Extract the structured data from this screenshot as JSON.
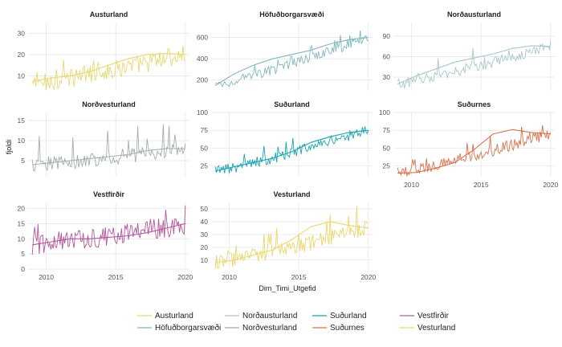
{
  "chart_data": {
    "type": "line",
    "xlabel": "Dim_Timi_Utgefid",
    "ylabel": "fjoldi",
    "x_ticks": [
      2010,
      2015,
      2020
    ],
    "x_range": [
      2008.7,
      2020.3
    ],
    "x_tick_panels": [
      "Vestfirðir",
      "Vesturland",
      "Suðurnes"
    ],
    "legend_position": "bottom",
    "grid": true,
    "panels": [
      {
        "name": "Austurland",
        "color": "#e8d870",
        "ylim": [
          3,
          35
        ],
        "yticks": [
          10,
          20,
          30
        ],
        "start": 6,
        "end": 20,
        "noise": 4.5,
        "spike": 8,
        "x_axis": false,
        "smooth": [
          7.5,
          9,
          10,
          12,
          15,
          18,
          20,
          20.5,
          20
        ]
      },
      {
        "name": "Höfuðborgarsvæði",
        "color": "#7fb7bf",
        "ylim": [
          100,
          740
        ],
        "yticks": [
          200,
          400,
          600
        ],
        "start": 150,
        "end": 600,
        "noise": 45,
        "spike": 60,
        "x_axis": false,
        "smooth": [
          150,
          260,
          340,
          400,
          440,
          480,
          540,
          580,
          600
        ]
      },
      {
        "name": "Norðausturland",
        "color": "#a9c7cb",
        "ylim": [
          10,
          110
        ],
        "yticks": [
          30,
          60,
          90
        ],
        "start": 20,
        "end": 75,
        "noise": 8,
        "spike": 15,
        "x_axis": false,
        "smooth": [
          20,
          32,
          42,
          52,
          58,
          64,
          72,
          76,
          75
        ]
      },
      {
        "name": "Norðvesturland",
        "color": "#a4adad",
        "ylim": [
          1,
          17
        ],
        "yticks": [
          5,
          10,
          15
        ],
        "start": 4,
        "end": 8,
        "noise": 2,
        "spike": 5,
        "x_axis": false,
        "smooth": [
          4,
          4.5,
          5,
          5.5,
          6,
          6.5,
          7.5,
          8,
          8
        ]
      },
      {
        "name": "Suðurland",
        "color": "#1ba4b0",
        "ylim": [
          10,
          100
        ],
        "yticks": [
          25,
          50,
          75,
          100
        ],
        "start": 18,
        "end": 75,
        "noise": 8,
        "spike": 14,
        "x_axis": false,
        "smooth": [
          18,
          24,
          30,
          36,
          45,
          58,
          66,
          72,
          75
        ]
      },
      {
        "name": "Suðurnes",
        "color": "#d9724f",
        "ylim": [
          10,
          100
        ],
        "yticks": [
          25,
          50,
          75,
          100
        ],
        "start": 15,
        "end": 70,
        "noise": 8,
        "spike": 14,
        "x_axis": true,
        "smooth": [
          15,
          16,
          22,
          30,
          48,
          70,
          76,
          72,
          70
        ]
      },
      {
        "name": "Vestfirðir",
        "color": "#b4559b",
        "ylim": [
          0,
          22
        ],
        "yticks": [
          0,
          5,
          10,
          15,
          20
        ],
        "start": 8,
        "end": 15,
        "noise": 3.5,
        "spike": 6,
        "x_axis": true,
        "smooth": [
          8,
          9,
          10,
          10,
          10.5,
          11,
          12,
          13.5,
          15
        ]
      },
      {
        "name": "Vesturland",
        "color": "#ead76a",
        "ylim": [
          3,
          55
        ],
        "yticks": [
          10,
          20,
          30,
          40,
          50
        ],
        "start": 8,
        "end": 35,
        "noise": 6,
        "spike": 10,
        "x_axis": true,
        "smooth": [
          8,
          10,
          14,
          18,
          26,
          36,
          40,
          37,
          35
        ]
      }
    ],
    "legend": [
      {
        "name": "Austurland",
        "color": "#e8d870"
      },
      {
        "name": "Höfuðborgarsvæði",
        "color": "#7fb7bf"
      },
      {
        "name": "Norðausturland",
        "color": "#a9c7cb"
      },
      {
        "name": "Norðvesturland",
        "color": "#a4adad"
      },
      {
        "name": "Suðurland",
        "color": "#1ba4b0"
      },
      {
        "name": "Suðurnes",
        "color": "#d9724f"
      },
      {
        "name": "Vestfirðir",
        "color": "#b4559b"
      },
      {
        "name": "Vesturland",
        "color": "#ead76a"
      }
    ]
  }
}
